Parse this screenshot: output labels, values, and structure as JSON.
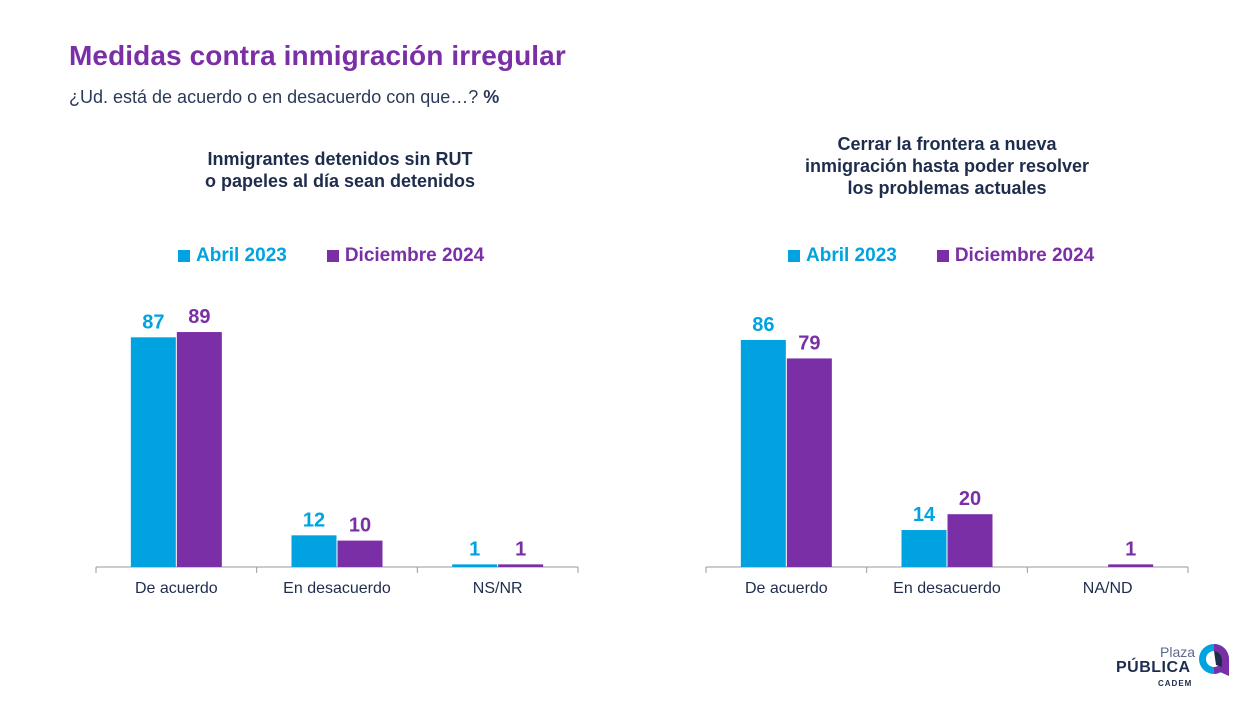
{
  "header": {
    "title": "Medidas contra inmigración irregular",
    "subtitle": "¿Ud. está de acuerdo o en desacuerdo con que…?",
    "unit": "%"
  },
  "logo": {
    "plaza": "Plaza",
    "publica": "PÚBLICA",
    "cadem": "CADEM"
  },
  "colors": {
    "series_a": "#00a3e0",
    "series_b": "#7b2fa6"
  },
  "chart_data": [
    {
      "type": "bar",
      "title_lines": [
        "Inmigrantes detenidos sin RUT",
        "o papeles al día sean detenidos"
      ],
      "categories": [
        "De acuerdo",
        "En desacuerdo",
        "NS/NR"
      ],
      "series": [
        {
          "name": "Abril 2023",
          "values": [
            87,
            12,
            1
          ]
        },
        {
          "name": "Diciembre 2024",
          "values": [
            89,
            10,
            1
          ]
        }
      ],
      "ylim": [
        0,
        100
      ],
      "grid": false,
      "legend": "top"
    },
    {
      "type": "bar",
      "title_lines": [
        "Cerrar la frontera a nueva",
        "inmigración hasta poder resolver",
        "los problemas actuales"
      ],
      "categories": [
        "De acuerdo",
        "En desacuerdo",
        "NA/ND"
      ],
      "series": [
        {
          "name": "Abril 2023",
          "values": [
            86,
            14,
            null
          ]
        },
        {
          "name": "Diciembre 2024",
          "values": [
            79,
            20,
            1
          ]
        }
      ],
      "ylim": [
        0,
        100
      ],
      "grid": false,
      "legend": "top"
    }
  ]
}
